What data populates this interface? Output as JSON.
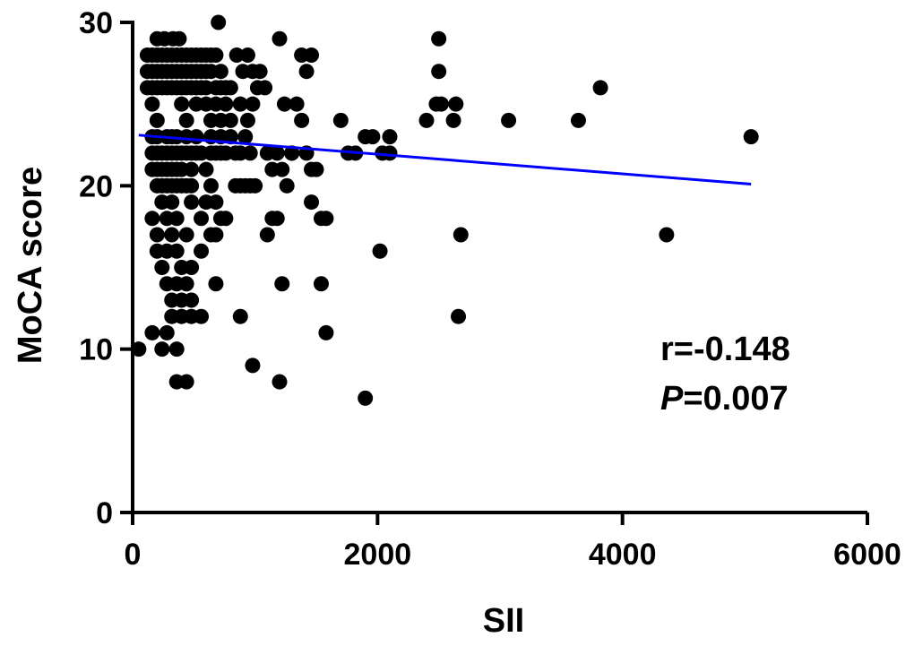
{
  "chart_data": {
    "type": "scatter",
    "xlabel": "SII",
    "ylabel": "MoCA score",
    "xlim": [
      0,
      6000
    ],
    "ylim": [
      0,
      30
    ],
    "xticks": [
      0,
      2000,
      4000,
      6000
    ],
    "yticks": [
      0,
      10,
      20,
      30
    ],
    "grid": false,
    "point_color": "#000000",
    "line_color": "#0000ff",
    "annotation": {
      "r_text": "r=-0.148",
      "p_italic": "P",
      "p_value": "=0.007"
    },
    "regression_line": [
      [
        50,
        23.1
      ],
      [
        5050,
        20.1
      ]
    ],
    "points": [
      [
        50,
        10
      ],
      [
        120,
        28
      ],
      [
        120,
        27
      ],
      [
        120,
        26
      ],
      [
        160,
        28
      ],
      [
        160,
        27
      ],
      [
        160,
        26
      ],
      [
        200,
        28
      ],
      [
        200,
        27
      ],
      [
        200,
        26
      ],
      [
        240,
        28
      ],
      [
        240,
        27
      ],
      [
        240,
        26
      ],
      [
        280,
        28
      ],
      [
        280,
        27
      ],
      [
        280,
        26
      ],
      [
        320,
        28
      ],
      [
        320,
        27
      ],
      [
        320,
        26
      ],
      [
        360,
        28
      ],
      [
        360,
        27
      ],
      [
        360,
        26
      ],
      [
        400,
        28
      ],
      [
        400,
        27
      ],
      [
        400,
        26
      ],
      [
        440,
        28
      ],
      [
        440,
        27
      ],
      [
        440,
        26
      ],
      [
        480,
        28
      ],
      [
        480,
        27
      ],
      [
        480,
        26
      ],
      [
        520,
        28
      ],
      [
        520,
        27
      ],
      [
        520,
        26
      ],
      [
        560,
        28
      ],
      [
        560,
        27
      ],
      [
        560,
        26
      ],
      [
        600,
        28
      ],
      [
        600,
        27
      ],
      [
        600,
        26
      ],
      [
        640,
        28
      ],
      [
        640,
        27
      ],
      [
        680,
        28
      ],
      [
        680,
        26
      ],
      [
        720,
        27
      ],
      [
        720,
        26
      ],
      [
        760,
        26
      ],
      [
        800,
        26
      ],
      [
        200,
        29
      ],
      [
        260,
        29
      ],
      [
        330,
        29
      ],
      [
        380,
        29
      ],
      [
        700,
        30
      ],
      [
        1200,
        29
      ],
      [
        2500,
        29
      ],
      [
        160,
        23
      ],
      [
        160,
        22
      ],
      [
        160,
        21
      ],
      [
        200,
        23
      ],
      [
        200,
        22
      ],
      [
        200,
        21
      ],
      [
        240,
        22
      ],
      [
        240,
        21
      ],
      [
        280,
        23
      ],
      [
        280,
        22
      ],
      [
        280,
        21
      ],
      [
        320,
        23
      ],
      [
        320,
        22
      ],
      [
        320,
        21
      ],
      [
        360,
        23
      ],
      [
        360,
        22
      ],
      [
        360,
        21
      ],
      [
        400,
        22
      ],
      [
        400,
        21
      ],
      [
        440,
        23
      ],
      [
        440,
        22
      ],
      [
        480,
        22
      ],
      [
        480,
        21
      ],
      [
        520,
        23
      ],
      [
        520,
        22
      ],
      [
        560,
        22
      ],
      [
        600,
        21
      ],
      [
        640,
        23
      ],
      [
        640,
        22
      ],
      [
        680,
        22
      ],
      [
        720,
        23
      ],
      [
        720,
        22
      ],
      [
        760,
        22
      ],
      [
        800,
        23
      ],
      [
        840,
        22
      ],
      [
        880,
        22
      ],
      [
        920,
        23
      ],
      [
        960,
        22
      ],
      [
        160,
        25
      ],
      [
        200,
        24
      ],
      [
        400,
        25
      ],
      [
        440,
        24
      ],
      [
        520,
        25
      ],
      [
        600,
        25
      ],
      [
        640,
        24
      ],
      [
        680,
        25
      ],
      [
        720,
        24
      ],
      [
        760,
        25
      ],
      [
        800,
        24
      ],
      [
        880,
        25
      ],
      [
        940,
        24
      ],
      [
        980,
        25
      ],
      [
        1020,
        26
      ],
      [
        1080,
        26
      ],
      [
        940,
        28
      ],
      [
        980,
        27
      ],
      [
        1040,
        27
      ],
      [
        850,
        28
      ],
      [
        900,
        27
      ],
      [
        200,
        20
      ],
      [
        240,
        20
      ],
      [
        280,
        20
      ],
      [
        320,
        20
      ],
      [
        360,
        20
      ],
      [
        400,
        20
      ],
      [
        440,
        20
      ],
      [
        480,
        20
      ],
      [
        640,
        20
      ],
      [
        840,
        20
      ],
      [
        880,
        20
      ],
      [
        920,
        20
      ],
      [
        960,
        20
      ],
      [
        1000,
        20
      ],
      [
        240,
        19
      ],
      [
        320,
        19
      ],
      [
        480,
        19
      ],
      [
        600,
        19
      ],
      [
        680,
        19
      ],
      [
        160,
        18
      ],
      [
        280,
        18
      ],
      [
        360,
        18
      ],
      [
        560,
        18
      ],
      [
        720,
        18
      ],
      [
        760,
        18
      ],
      [
        200,
        17
      ],
      [
        320,
        17
      ],
      [
        440,
        17
      ],
      [
        640,
        17
      ],
      [
        680,
        17
      ],
      [
        200,
        16
      ],
      [
        280,
        16
      ],
      [
        360,
        16
      ],
      [
        560,
        16
      ],
      [
        240,
        15
      ],
      [
        400,
        15
      ],
      [
        480,
        15
      ],
      [
        280,
        14
      ],
      [
        360,
        14
      ],
      [
        440,
        14
      ],
      [
        680,
        14
      ],
      [
        320,
        13
      ],
      [
        400,
        13
      ],
      [
        480,
        13
      ],
      [
        320,
        12
      ],
      [
        400,
        12
      ],
      [
        480,
        12
      ],
      [
        560,
        12
      ],
      [
        160,
        11
      ],
      [
        280,
        11
      ],
      [
        240,
        10
      ],
      [
        360,
        10
      ],
      [
        360,
        8
      ],
      [
        440,
        8
      ],
      [
        1100,
        22
      ],
      [
        1140,
        21
      ],
      [
        1180,
        22
      ],
      [
        1220,
        21
      ],
      [
        1260,
        20
      ],
      [
        1300,
        22
      ],
      [
        1340,
        25
      ],
      [
        1380,
        24
      ],
      [
        1420,
        27
      ],
      [
        1460,
        28
      ],
      [
        1380,
        28
      ],
      [
        1420,
        22
      ],
      [
        1460,
        21
      ],
      [
        1500,
        21
      ],
      [
        1540,
        18
      ],
      [
        1580,
        18
      ],
      [
        1460,
        19
      ],
      [
        1100,
        17
      ],
      [
        1140,
        18
      ],
      [
        1180,
        18
      ],
      [
        1220,
        14
      ],
      [
        1240,
        25
      ],
      [
        1300,
        22
      ],
      [
        1540,
        14
      ],
      [
        1580,
        11
      ],
      [
        880,
        12
      ],
      [
        980,
        9
      ],
      [
        1200,
        8
      ],
      [
        1900,
        7
      ],
      [
        2020,
        16
      ],
      [
        1700,
        24
      ],
      [
        1760,
        22
      ],
      [
        1820,
        22
      ],
      [
        1900,
        23
      ],
      [
        1960,
        23
      ],
      [
        2040,
        22
      ],
      [
        2100,
        22
      ],
      [
        2100,
        23
      ],
      [
        2400,
        24
      ],
      [
        2480,
        25
      ],
      [
        2520,
        25
      ],
      [
        2500,
        27
      ],
      [
        2620,
        24
      ],
      [
        2640,
        25
      ],
      [
        2680,
        17
      ],
      [
        2660,
        12
      ],
      [
        3070,
        24
      ],
      [
        3640,
        24
      ],
      [
        3820,
        26
      ],
      [
        4360,
        17
      ],
      [
        5050,
        23
      ]
    ]
  }
}
